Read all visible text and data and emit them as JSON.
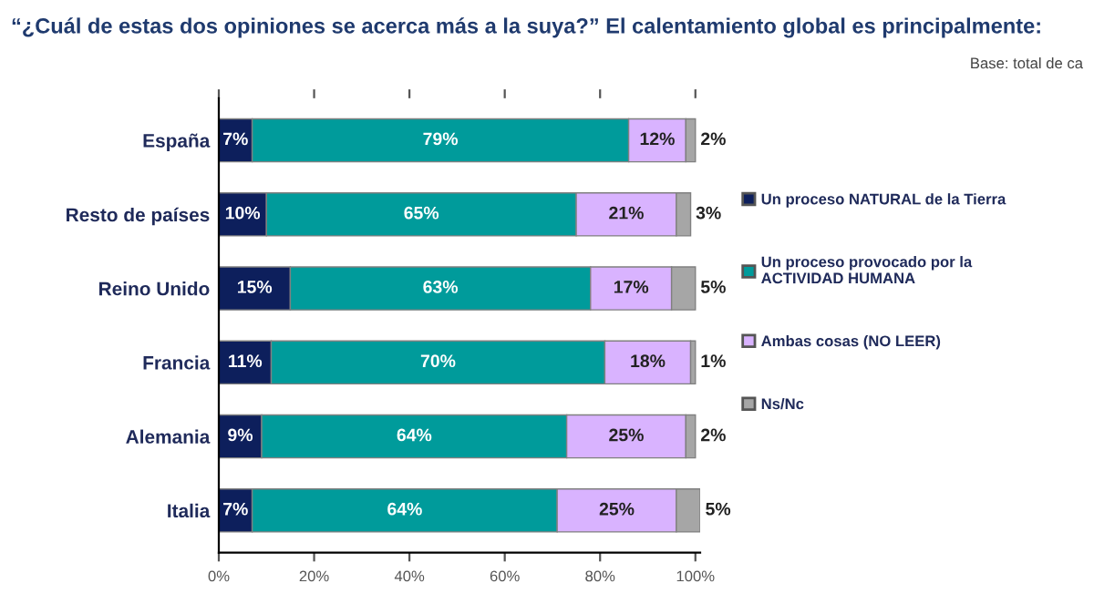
{
  "chart_data": {
    "type": "bar",
    "orientation": "horizontal",
    "stacked": true,
    "title": "“¿Cuál de estas dos opiniones se acerca más a la suya?” El calentamiento global es principalmente:",
    "annotations": [
      "Base: total de ca"
    ],
    "categories": [
      "España",
      "Resto de países",
      "Reino Unido",
      "Francia",
      "Alemania",
      "Italia"
    ],
    "series": [
      {
        "name": "Un proceso NATURAL de la Tierra",
        "color": "#0d1f5c",
        "values": [
          7,
          10,
          15,
          11,
          9,
          7
        ],
        "value_labels": [
          "7%",
          "10%",
          "15%",
          "11%",
          "9%",
          "7%"
        ]
      },
      {
        "name": "Un proceso provocado por la ACTIVIDAD HUMANA",
        "color": "#009b9b",
        "values": [
          79,
          65,
          63,
          70,
          64,
          64
        ],
        "value_labels": [
          "79%",
          "65%",
          "63%",
          "70%",
          "64%",
          "64%"
        ]
      },
      {
        "name": "Ambas cosas (NO LEER)",
        "color": "#d9b3ff",
        "values": [
          12,
          21,
          17,
          18,
          25,
          25
        ],
        "value_labels": [
          "12%",
          "21%",
          "17%",
          "18%",
          "25%",
          "25%"
        ]
      },
      {
        "name": "Ns/Nc",
        "color": "#a6a6a6",
        "values": [
          2,
          3,
          5,
          1,
          2,
          5
        ],
        "value_labels": [
          "2%",
          "3%",
          "5%",
          "1%",
          "2%",
          "5%"
        ]
      }
    ],
    "xlim": [
      0,
      101
    ],
    "xticks": [
      {
        "value": 0,
        "label": "0%"
      },
      {
        "value": 20,
        "label": "20%"
      },
      {
        "value": 40,
        "label": "40%"
      },
      {
        "value": 60,
        "label": "60%"
      },
      {
        "value": 80,
        "label": "80%"
      },
      {
        "value": 100,
        "label": "100%"
      }
    ],
    "legend": "right",
    "grid": false
  }
}
